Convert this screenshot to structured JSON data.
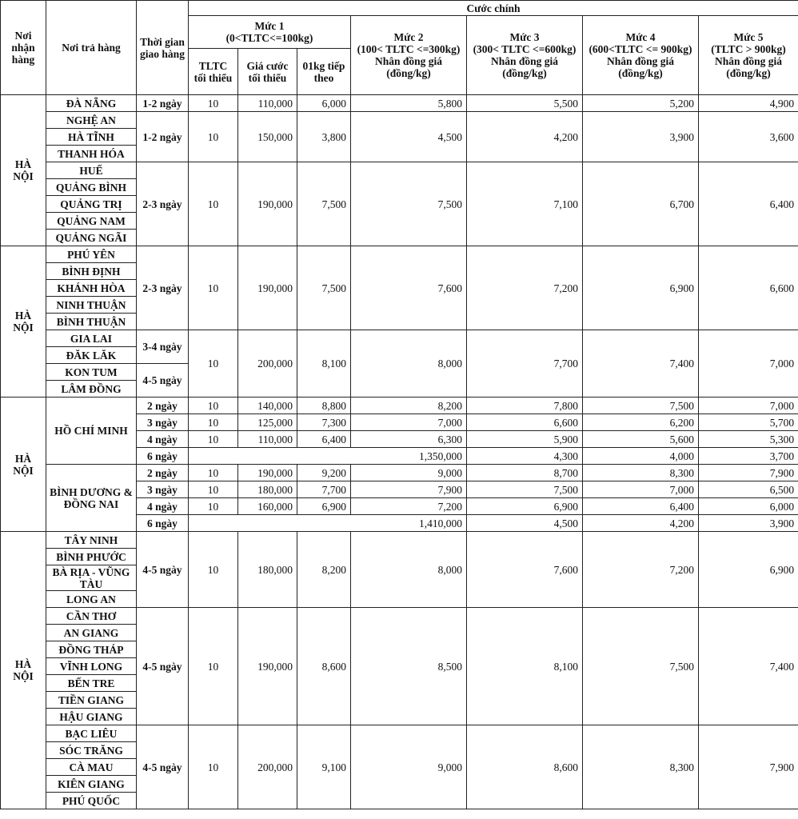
{
  "header": {
    "origin": "Nơi nhận hàng",
    "destination": "Nơi trả hàng",
    "delivery_time": "Thời gian giao hàng",
    "main_rate": "Cước chính",
    "tier1": {
      "title": "Mức 1",
      "range": "(0<TLTC<=100kg)"
    },
    "tier1_sub": [
      "TLTC tối thiểu",
      "Giá cước tối thiểu",
      "01kg tiếp theo"
    ],
    "tiers": [
      {
        "title": "Mức 2",
        "range": "(100< TLTC <=300kg)",
        "note": "Nhân đồng giá",
        "unit": "(đồng/kg)"
      },
      {
        "title": "Mức 3",
        "range": "(300< TLTC <=600kg)",
        "note": "Nhân đồng giá",
        "unit": "(đồng/kg)"
      },
      {
        "title": "Mức 4",
        "range": "(600<TLTC <= 900kg)",
        "note": "Nhân đồng giá",
        "unit": "(đồng/kg)"
      },
      {
        "title": "Mức 5",
        "range": "(TLTC > 900kg)",
        "note": "Nhân đồng giá",
        "unit": "(đồng/kg)"
      }
    ]
  },
  "groups": [
    {
      "origin": "HÀ NỘI",
      "blocks": [
        {
          "dests": [
            "ĐÀ NẴNG"
          ],
          "times": [
            {
              "label": "1-2 ngày",
              "span": 1
            }
          ],
          "p": [
            "10",
            "110,000",
            "6,000",
            "5,800",
            "5,500",
            "5,200",
            "4,900"
          ]
        },
        {
          "dests": [
            "NGHỆ AN",
            "HÀ TĨNH",
            "THANH HÓA"
          ],
          "times": [
            {
              "label": "1-2 ngày",
              "span": 3
            }
          ],
          "p": [
            "10",
            "150,000",
            "3,800",
            "4,500",
            "4,200",
            "3,900",
            "3,600"
          ]
        },
        {
          "dests": [
            "HUẾ",
            "QUẢNG BÌNH",
            "QUẢNG TRỊ",
            "QUẢNG NAM",
            "QUẢNG NGÃI"
          ],
          "times": [
            {
              "label": "2-3 ngày",
              "span": 5
            }
          ],
          "p": [
            "10",
            "190,000",
            "7,500",
            "7,500",
            "7,100",
            "6,700",
            "6,400"
          ]
        }
      ]
    },
    {
      "origin": "HÀ NỘI",
      "blocks": [
        {
          "dests": [
            "PHÚ YÊN",
            "BÌNH ĐỊNH",
            "KHÁNH HÒA",
            "NINH THUẬN",
            "BÌNH THUẬN"
          ],
          "times": [
            {
              "label": "2-3 ngày",
              "span": 5
            }
          ],
          "p": [
            "10",
            "190,000",
            "7,500",
            "7,600",
            "7,200",
            "6,900",
            "6,600"
          ]
        },
        {
          "dests": [
            "GIA LAI",
            "ĐĂK LĂK",
            "KON TUM",
            "LÂM ĐỒNG"
          ],
          "times": [
            {
              "label": "3-4 ngày",
              "span": 2
            },
            {
              "label": "4-5 ngày",
              "span": 2
            }
          ],
          "p": [
            "10",
            "200,000",
            "8,100",
            "8,000",
            "7,700",
            "7,400",
            "7,000"
          ]
        }
      ]
    },
    {
      "origin": "HÀ NỘI",
      "blocks": [
        {
          "dest": "HỒ CHÍ MINH",
          "tiers": [
            {
              "time": "2 ngày",
              "p": [
                "10",
                "140,000",
                "8,800",
                "8,200",
                "7,800",
                "7,500",
                "7,000"
              ]
            },
            {
              "time": "3 ngày",
              "p": [
                "10",
                "125,000",
                "7,300",
                "7,000",
                "6,600",
                "6,200",
                "5,700"
              ]
            },
            {
              "time": "4 ngày",
              "p": [
                "10",
                "110,000",
                "6,400",
                "6,300",
                "5,900",
                "5,600",
                "5,300"
              ]
            },
            {
              "time": "6 ngày",
              "flat": "1,350,000",
              "p": [
                "4,300",
                "4,000",
                "3,700"
              ]
            }
          ]
        },
        {
          "dest": "BÌNH DƯƠNG & ĐỒNG NAI",
          "tiers": [
            {
              "time": "2 ngày",
              "p": [
                "10",
                "190,000",
                "9,200",
                "9,000",
                "8,700",
                "8,300",
                "7,900"
              ]
            },
            {
              "time": "3 ngày",
              "p": [
                "10",
                "180,000",
                "7,700",
                "7,900",
                "7,500",
                "7,000",
                "6,500"
              ]
            },
            {
              "time": "4 ngày",
              "p": [
                "10",
                "160,000",
                "6,900",
                "7,200",
                "6,900",
                "6,400",
                "6,000"
              ]
            },
            {
              "time": "6 ngày",
              "flat": "1,410,000",
              "p": [
                "4,500",
                "4,200",
                "3,900"
              ]
            }
          ]
        }
      ]
    },
    {
      "origin": "HÀ NỘI",
      "blocks": [
        {
          "dests": [
            "TÂY NINH",
            "BÌNH PHƯỚC",
            "BÀ RỊA - VŨNG TÀU",
            "LONG AN"
          ],
          "times": [
            {
              "label": "4-5 ngày",
              "span": 4
            }
          ],
          "p": [
            "10",
            "180,000",
            "8,200",
            "8,000",
            "7,600",
            "7,200",
            "6,900"
          ]
        },
        {
          "dests": [
            "CẦN THƠ",
            "AN GIANG",
            "ĐỒNG THÁP",
            "VĨNH LONG",
            "BẾN TRE",
            "TIỀN GIANG",
            "HẬU GIANG"
          ],
          "times": [
            {
              "label": "4-5 ngày",
              "span": 7
            }
          ],
          "p": [
            "10",
            "190,000",
            "8,600",
            "8,500",
            "8,100",
            "7,500",
            "7,400"
          ]
        },
        {
          "dests": [
            "BẠC LIÊU",
            "SÓC TRĂNG",
            "CÀ MAU",
            "KIÊN GIANG",
            "PHÚ QUỐC"
          ],
          "times": [
            {
              "label": "4-5 ngày",
              "span": 5
            }
          ],
          "p": [
            "10",
            "200,000",
            "9,100",
            "9,000",
            "8,600",
            "8,300",
            "7,900"
          ]
        }
      ]
    }
  ]
}
